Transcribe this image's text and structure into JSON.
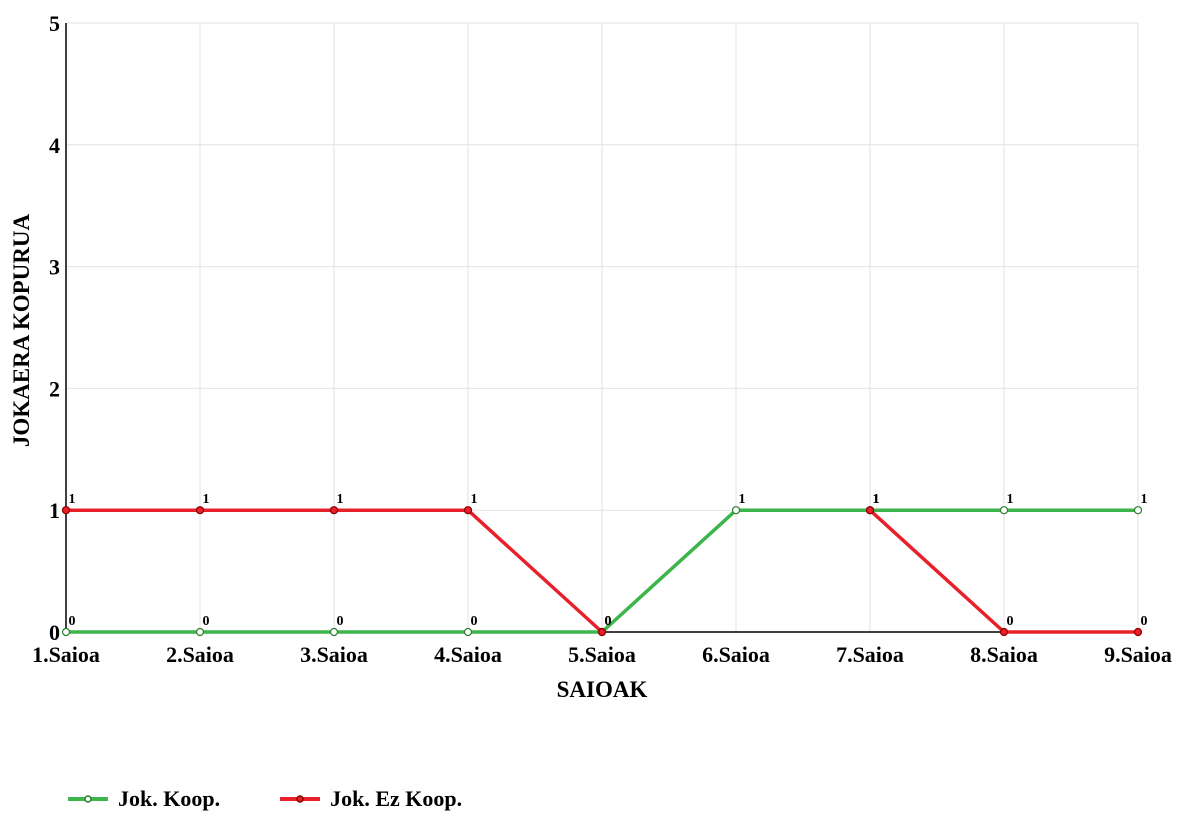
{
  "chart_data": {
    "type": "line",
    "title": "",
    "xlabel": "SAIOAK",
    "ylabel": "JOKAERA KOPURUA",
    "categories": [
      "1.Saioa",
      "2.Saioa",
      "3.Saioa",
      "4.Saioa",
      "5.Saioa",
      "6.Saioa",
      "7.Saioa",
      "8.Saioa",
      "9.Saioa"
    ],
    "ylim": [
      0,
      5
    ],
    "yticks": [
      0,
      1,
      2,
      3,
      4,
      5
    ],
    "grid": true,
    "legend_position": "bottom-left",
    "series": [
      {
        "name": "Jok. Koop.",
        "color": "#3cb54a",
        "values": [
          0,
          0,
          0,
          0,
          0,
          1,
          1,
          1,
          1
        ]
      },
      {
        "name": "Jok. Ez Koop.",
        "color": "#e8202a",
        "values": [
          1,
          1,
          1,
          1,
          0,
          null,
          1,
          0,
          0
        ]
      }
    ]
  }
}
